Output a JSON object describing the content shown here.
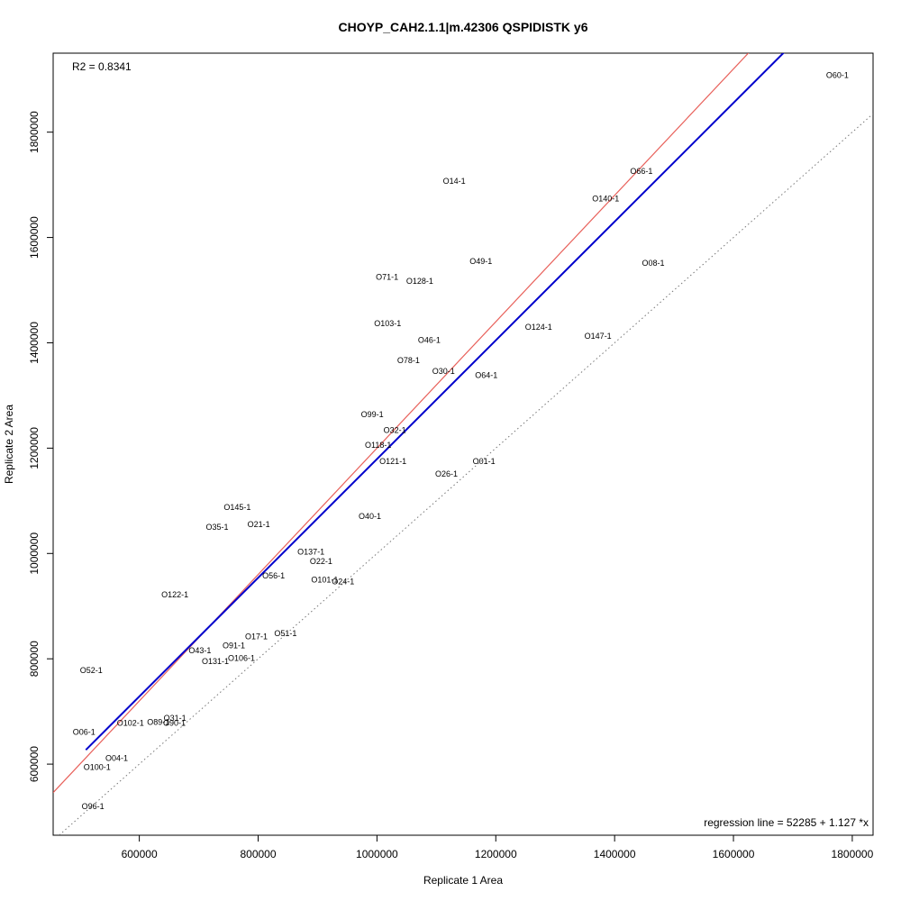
{
  "chart_data": {
    "type": "scatter",
    "title": "CHOYP_CAH2.1.1|m.42306 QSPIDISTK y6",
    "xlabel": "Replicate 1 Area",
    "ylabel": "Replicate 2 Area",
    "r2_text": "R2 = 0.8341",
    "regression_text": "regression line = 52285 + 1.127 *x",
    "xlim": [
      455000,
      1835000
    ],
    "ylim": [
      465000,
      1950000
    ],
    "x_ticks": [
      600000,
      800000,
      1000000,
      1200000,
      1400000,
      1600000,
      1800000
    ],
    "y_ticks": [
      600000,
      800000,
      1000000,
      1200000,
      1400000,
      1600000,
      1800000
    ],
    "grid": false,
    "regression_line": {
      "intercept": 52285,
      "slope": 1.127,
      "x_range": [
        510000,
        1775000
      ],
      "color": "#0000cc"
    },
    "reference_line": {
      "slope": 1.2,
      "intercept": 0,
      "color": "#e8605a"
    },
    "identity_line": {
      "slope": 1,
      "intercept": 0,
      "color": "#777777",
      "style": "dotted"
    },
    "points": [
      {
        "label": "O60-1",
        "x": 1775000,
        "y": 1908000
      },
      {
        "label": "O66-1",
        "x": 1445000,
        "y": 1726000
      },
      {
        "label": "O14-1",
        "x": 1130000,
        "y": 1707000
      },
      {
        "label": "O140-1",
        "x": 1385000,
        "y": 1674000
      },
      {
        "label": "O49-1",
        "x": 1175000,
        "y": 1555000
      },
      {
        "label": "O08-1",
        "x": 1465000,
        "y": 1551000
      },
      {
        "label": "O71-1",
        "x": 1017000,
        "y": 1525000
      },
      {
        "label": "O128-1",
        "x": 1072000,
        "y": 1517000
      },
      {
        "label": "O103-1",
        "x": 1018000,
        "y": 1437000
      },
      {
        "label": "O124-1",
        "x": 1272000,
        "y": 1430000
      },
      {
        "label": "O147-1",
        "x": 1372000,
        "y": 1413000
      },
      {
        "label": "O46-1",
        "x": 1088000,
        "y": 1405000
      },
      {
        "label": "O78-1",
        "x": 1053000,
        "y": 1367000
      },
      {
        "label": "O30-1",
        "x": 1112000,
        "y": 1346000
      },
      {
        "label": "O64-1",
        "x": 1184000,
        "y": 1338000
      },
      {
        "label": "O99-1",
        "x": 992000,
        "y": 1264000
      },
      {
        "label": "O32-1",
        "x": 1030000,
        "y": 1234000
      },
      {
        "label": "O118-1",
        "x": 1002000,
        "y": 1206000
      },
      {
        "label": "O121-1",
        "x": 1027000,
        "y": 1175000
      },
      {
        "label": "O01-1",
        "x": 1180000,
        "y": 1175000
      },
      {
        "label": "O26-1",
        "x": 1117000,
        "y": 1151000
      },
      {
        "label": "O145-1",
        "x": 765000,
        "y": 1088000
      },
      {
        "label": "O40-1",
        "x": 988000,
        "y": 1071000
      },
      {
        "label": "O21-1",
        "x": 801000,
        "y": 1055000
      },
      {
        "label": "O35-1",
        "x": 731000,
        "y": 1050000
      },
      {
        "label": "O137-1",
        "x": 889000,
        "y": 1003000
      },
      {
        "label": "O22-1",
        "x": 906000,
        "y": 985000
      },
      {
        "label": "O56-1",
        "x": 826000,
        "y": 958000
      },
      {
        "label": "O101-1",
        "x": 912000,
        "y": 950000
      },
      {
        "label": "O24-1",
        "x": 943000,
        "y": 947000
      },
      {
        "label": "O122-1",
        "x": 660000,
        "y": 922000
      },
      {
        "label": "O51-1",
        "x": 846000,
        "y": 848000
      },
      {
        "label": "O17-1",
        "x": 797000,
        "y": 842000
      },
      {
        "label": "O91-1",
        "x": 759000,
        "y": 825000
      },
      {
        "label": "O43-1",
        "x": 702000,
        "y": 816000
      },
      {
        "label": "O106-1",
        "x": 772000,
        "y": 801000
      },
      {
        "label": "O131-1",
        "x": 728000,
        "y": 795000
      },
      {
        "label": "O52-1",
        "x": 519000,
        "y": 778000
      },
      {
        "label": "O31-1",
        "x": 660000,
        "y": 687000
      },
      {
        "label": "O102-1",
        "x": 585000,
        "y": 678000
      },
      {
        "label": "O89-1",
        "x": 632000,
        "y": 680000
      },
      {
        "label": "O90-1",
        "x": 659000,
        "y": 678000
      },
      {
        "label": "O06-1",
        "x": 507000,
        "y": 661000
      },
      {
        "label": "O04-1",
        "x": 562000,
        "y": 611000
      },
      {
        "label": "O100-1",
        "x": 529000,
        "y": 594000
      },
      {
        "label": "O96-1",
        "x": 522000,
        "y": 520000
      }
    ]
  }
}
